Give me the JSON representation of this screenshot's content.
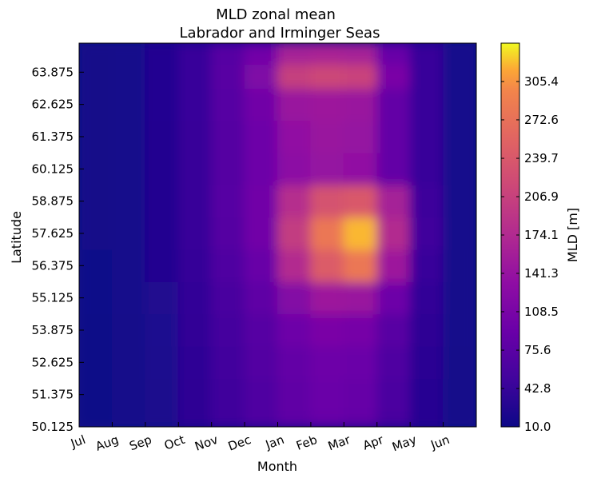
{
  "chart_data": {
    "type": "heatmap",
    "title": "MLD zonal mean",
    "subtitle": "Labrador and Irminger Seas",
    "xlabel": "Month",
    "ylabel": "Latitude",
    "x_ticks": [
      "Jul",
      "Aug",
      "Sep",
      "Oct",
      "Nov",
      "Dec",
      "Jan",
      "Feb",
      "Mar",
      "Apr",
      "May",
      "Jun"
    ],
    "y_ticks": [
      "50.125",
      "51.375",
      "52.625",
      "53.875",
      "55.125",
      "56.375",
      "57.625",
      "58.875",
      "60.125",
      "61.375",
      "62.625",
      "63.875"
    ],
    "ylim": [
      50.125,
      65.0
    ],
    "colorbar": {
      "label": "MLD [m]",
      "ticks": [
        "10.0",
        "42.8",
        "75.6",
        "108.5",
        "141.3",
        "174.1",
        "206.9",
        "239.7",
        "272.6",
        "305.4"
      ],
      "range": [
        10.0,
        338.2
      ],
      "colormap": "plasma"
    },
    "latitudes": [
      50.125,
      51.375,
      52.625,
      53.875,
      55.125,
      56.375,
      57.625,
      58.875,
      60.125,
      61.375,
      62.625,
      63.875,
      64.5
    ],
    "values": [
      [
        12,
        15,
        22,
        35,
        50,
        65,
        80,
        90,
        85,
        60,
        30,
        15
      ],
      [
        12,
        15,
        22,
        35,
        50,
        65,
        82,
        92,
        88,
        62,
        30,
        15
      ],
      [
        12,
        16,
        23,
        36,
        52,
        68,
        85,
        95,
        92,
        65,
        32,
        16
      ],
      [
        12,
        16,
        24,
        38,
        55,
        72,
        95,
        110,
        105,
        75,
        35,
        17
      ],
      [
        13,
        17,
        25,
        40,
        60,
        80,
        120,
        150,
        145,
        95,
        40,
        18
      ],
      [
        13,
        18,
        26,
        42,
        65,
        90,
        175,
        245,
        280,
        150,
        45,
        18
      ],
      [
        14,
        18,
        27,
        44,
        70,
        100,
        200,
        280,
        320,
        175,
        50,
        19
      ],
      [
        14,
        18,
        27,
        44,
        72,
        100,
        180,
        230,
        240,
        160,
        48,
        19
      ],
      [
        14,
        18,
        27,
        44,
        70,
        95,
        130,
        140,
        135,
        85,
        45,
        19
      ],
      [
        14,
        18,
        27,
        44,
        70,
        95,
        135,
        145,
        140,
        85,
        45,
        19
      ],
      [
        14,
        18,
        28,
        45,
        72,
        100,
        145,
        150,
        145,
        85,
        45,
        19
      ],
      [
        14,
        18,
        28,
        45,
        75,
        115,
        205,
        215,
        210,
        110,
        45,
        19
      ],
      [
        14,
        18,
        28,
        45,
        72,
        100,
        160,
        165,
        160,
        90,
        45,
        19
      ]
    ],
    "grid": false
  }
}
